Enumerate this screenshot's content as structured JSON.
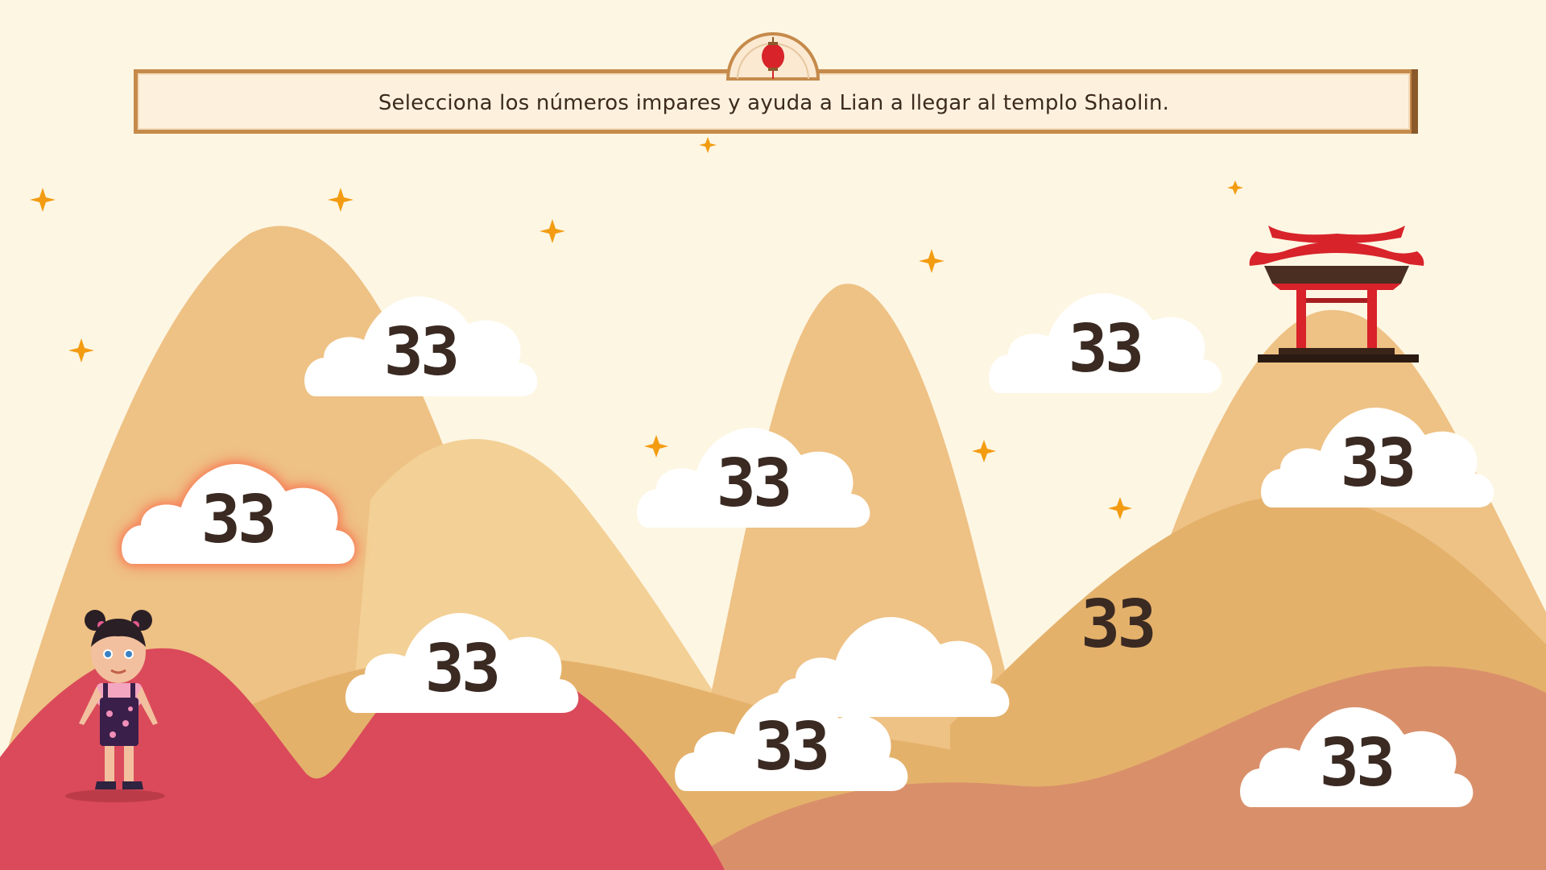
{
  "instruction": "Selecciona los números impares y ayuda a Lian a llegar al templo Shaolin.",
  "colors": {
    "background": "#fdf6e3",
    "mountain_far": "#f1c884",
    "mountain_mid": "#e6b36c",
    "mountain_front_red": "#da4a5a",
    "mountain_front_terracotta": "#d9906a",
    "cloud": "#ffffff",
    "number_text": "#3a2a22",
    "sparkle": "#f39c12",
    "temple_red": "#d8232a"
  },
  "icons": [
    "lantern-icon",
    "sparkle-icon",
    "temple-icon",
    "girl-character"
  ],
  "clouds": [
    {
      "id": "c1",
      "number": "33",
      "selected": false
    },
    {
      "id": "c2",
      "number": "33",
      "selected": true
    },
    {
      "id": "c3",
      "number": "33",
      "selected": false
    },
    {
      "id": "c4",
      "number": "33",
      "selected": false
    },
    {
      "id": "c5",
      "number": "33",
      "selected": false
    },
    {
      "id": "c6",
      "number": "33",
      "selected": false
    },
    {
      "id": "c7",
      "number": "",
      "selected": false
    },
    {
      "id": "c8",
      "number": "33",
      "selected": false
    },
    {
      "id": "c9",
      "number": "33",
      "selected": false
    }
  ],
  "free_number": "33",
  "character": {
    "name": "Lian"
  }
}
